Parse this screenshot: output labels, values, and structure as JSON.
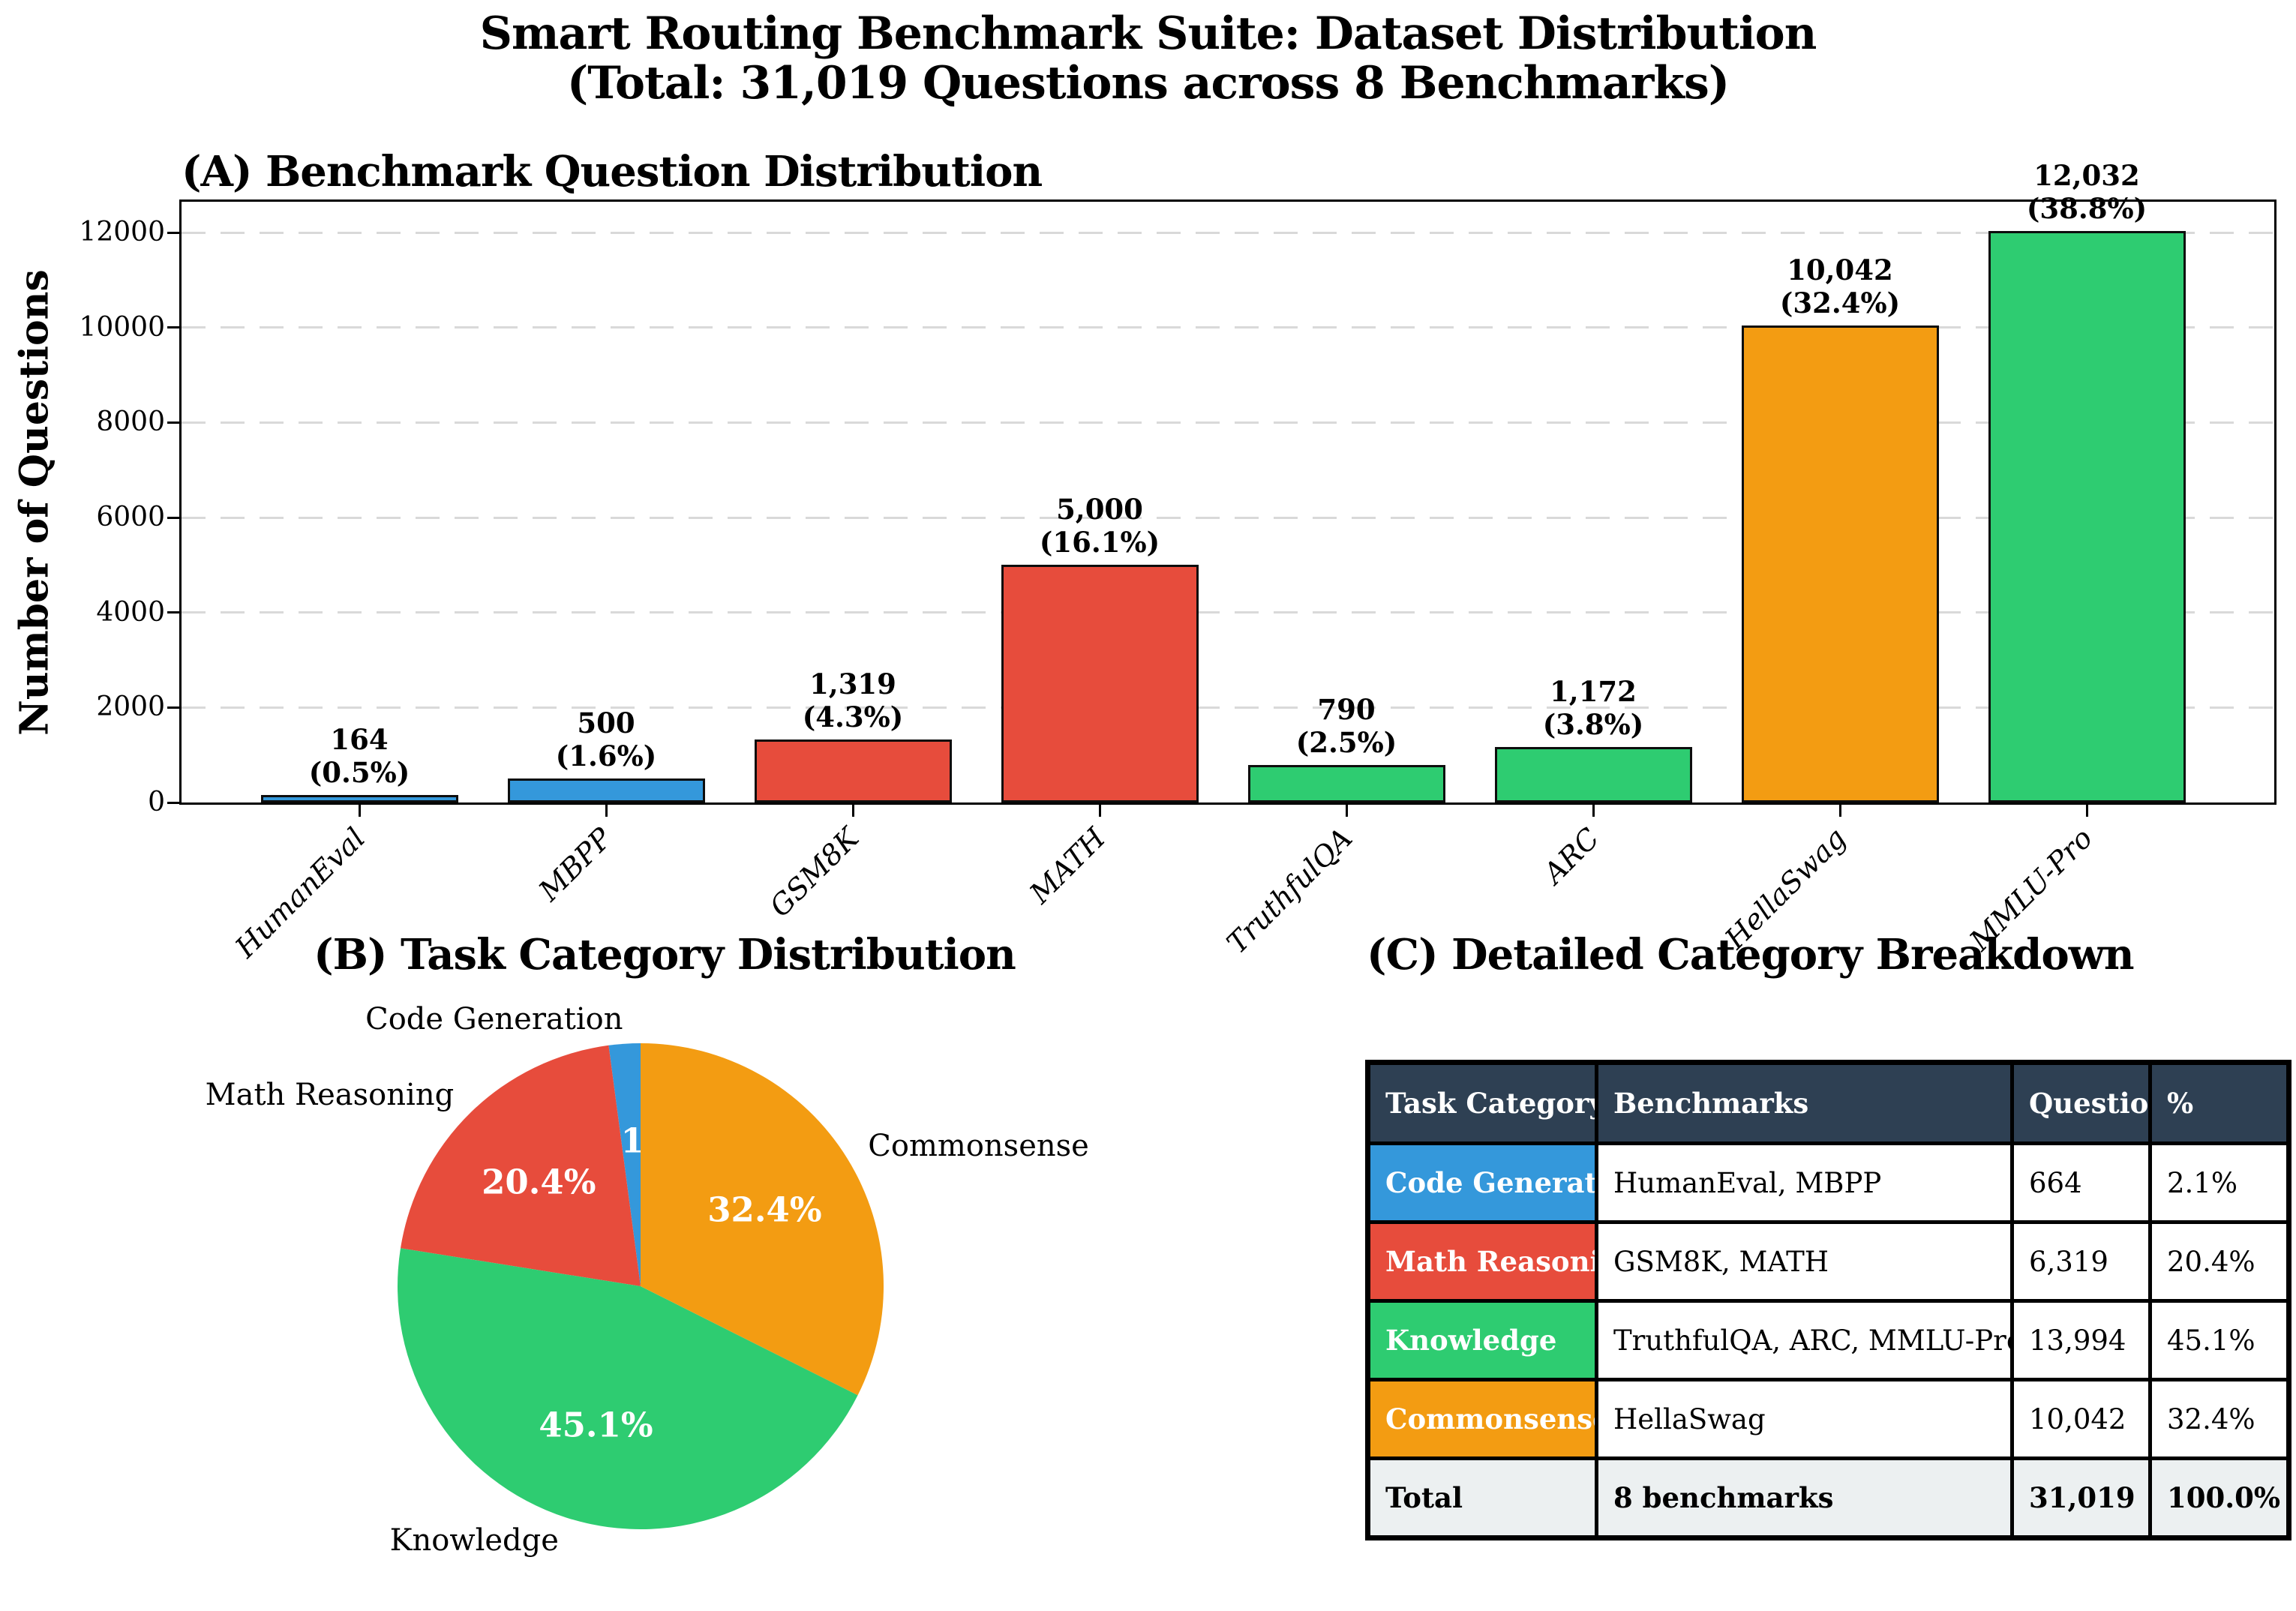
{
  "title": {
    "line1": "Smart Routing Benchmark Suite: Dataset Distribution",
    "line2": "(Total: 31,019 Questions across 8 Benchmarks)"
  },
  "palette": {
    "blue": "#3498db",
    "red": "#e74c3c",
    "green": "#2ecc71",
    "orange": "#f39c12",
    "table_header_bg": "#2e4053",
    "total_row_bg": "#ecf0f1",
    "grid_color": "#d9d9d9"
  },
  "chart_data": [
    {
      "type": "bar",
      "title": "(A) Benchmark Question Distribution",
      "xlabel": "",
      "ylabel": "Number of Questions",
      "categories": [
        "HumanEval",
        "MBPP",
        "GSM8K",
        "MATH",
        "TruthfulQA",
        "ARC",
        "HellaSwag",
        "MMLU-Pro"
      ],
      "values": [
        164,
        500,
        1319,
        5000,
        790,
        1172,
        10042,
        12032
      ],
      "value_labels": [
        "164",
        "500",
        "1,319",
        "5,000",
        "790",
        "1,172",
        "10,042",
        "12,032"
      ],
      "pct_labels": [
        "(0.5%)",
        "(1.6%)",
        "(4.3%)",
        "(16.1%)",
        "(2.5%)",
        "(3.8%)",
        "(32.4%)",
        "(38.8%)"
      ],
      "bar_colors": [
        "#3498db",
        "#3498db",
        "#e74c3c",
        "#e74c3c",
        "#2ecc71",
        "#2ecc71",
        "#f39c12",
        "#2ecc71"
      ],
      "yticks": [
        0,
        2000,
        4000,
        6000,
        8000,
        10000,
        12000
      ],
      "ylim": [
        0,
        12650
      ],
      "grid": "dashed horizontal gridlines",
      "legend": "none"
    },
    {
      "type": "pie",
      "title": "(B) Task Category Distribution",
      "labels": [
        "Code Generation",
        "Math Reasoning",
        "Knowledge",
        "Commonsense"
      ],
      "values": [
        2.1,
        20.4,
        45.1,
        32.4
      ],
      "pct_labels": [
        "2.1%",
        "20.4%",
        "45.1%",
        "32.4%"
      ],
      "colors": [
        "#3498db",
        "#e74c3c",
        "#2ecc71",
        "#f39c12"
      ],
      "start_angle": 90,
      "counterclock": true,
      "legend": "none"
    },
    {
      "type": "table",
      "title": "(C) Detailed Category Breakdown",
      "columns": [
        "Task Category",
        "Benchmarks",
        "Questions",
        "%"
      ],
      "rows": [
        {
          "category": "Code Generation",
          "color": "#3498db",
          "benchmarks": "HumanEval, MBPP",
          "questions": "664",
          "pct": "2.1%"
        },
        {
          "category": "Math Reasoning",
          "color": "#e74c3c",
          "benchmarks": "GSM8K, MATH",
          "questions": "6,319",
          "pct": "20.4%"
        },
        {
          "category": "Knowledge",
          "color": "#2ecc71",
          "benchmarks": "TruthfulQA, ARC, MMLU-Pro",
          "questions": "13,994",
          "pct": "45.1%"
        },
        {
          "category": "Commonsense",
          "color": "#f39c12",
          "benchmarks": "HellaSwag",
          "questions": "10,042",
          "pct": "32.4%"
        }
      ],
      "total_row": {
        "category": "Total",
        "benchmarks": "8 benchmarks",
        "questions": "31,019",
        "pct": "100.0%"
      }
    }
  ]
}
